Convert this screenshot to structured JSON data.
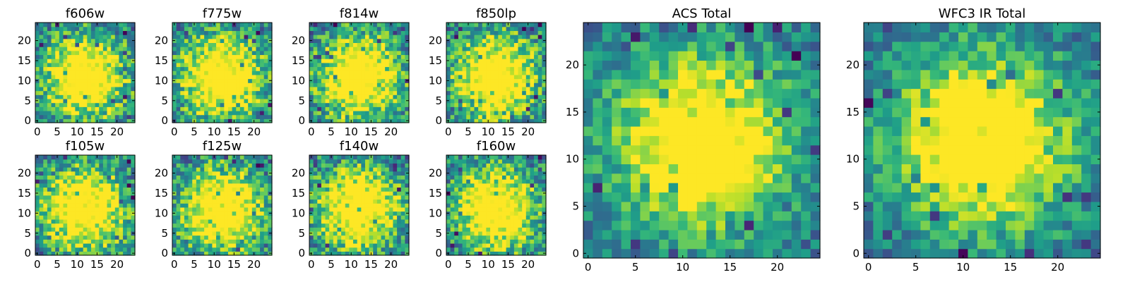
{
  "figure_title": "",
  "chart_data": [
    {
      "type": "heatmap",
      "title": "f606w",
      "xlabel": "",
      "ylabel": "",
      "nx": 25,
      "ny": 25,
      "xlim": [
        0,
        25
      ],
      "ylim": [
        0,
        25
      ],
      "xticks": [
        0,
        5,
        10,
        15,
        20
      ],
      "yticks": [
        0,
        5,
        10,
        15,
        20
      ],
      "colormap": "viridis",
      "peak": [
        12,
        11
      ],
      "grid": false
    },
    {
      "type": "heatmap",
      "title": "f775w",
      "xlabel": "",
      "ylabel": "",
      "nx": 25,
      "ny": 25,
      "xlim": [
        0,
        25
      ],
      "ylim": [
        0,
        25
      ],
      "xticks": [
        0,
        5,
        10,
        15,
        20
      ],
      "yticks": [
        0,
        5,
        10,
        15,
        20
      ],
      "colormap": "viridis",
      "peak": [
        12,
        11
      ],
      "grid": false
    },
    {
      "type": "heatmap",
      "title": "f814w",
      "xlabel": "",
      "ylabel": "",
      "nx": 25,
      "ny": 25,
      "xlim": [
        0,
        25
      ],
      "ylim": [
        0,
        25
      ],
      "xticks": [
        0,
        5,
        10,
        15,
        20
      ],
      "yticks": [
        0,
        5,
        10,
        15,
        20
      ],
      "colormap": "viridis",
      "peak": [
        12,
        11
      ],
      "grid": false
    },
    {
      "type": "heatmap",
      "title": "f850lp",
      "xlabel": "",
      "ylabel": "",
      "nx": 25,
      "ny": 25,
      "xlim": [
        0,
        25
      ],
      "ylim": [
        0,
        25
      ],
      "xticks": [
        0,
        5,
        10,
        15,
        20
      ],
      "yticks": [
        0,
        5,
        10,
        15,
        20
      ],
      "colormap": "viridis",
      "peak": [
        12,
        11
      ],
      "grid": false
    },
    {
      "type": "heatmap",
      "title": "f105w",
      "xlabel": "",
      "ylabel": "",
      "nx": 25,
      "ny": 25,
      "xlim": [
        0,
        25
      ],
      "ylim": [
        0,
        25
      ],
      "xticks": [
        0,
        5,
        10,
        15,
        20
      ],
      "yticks": [
        0,
        5,
        10,
        15,
        20
      ],
      "colormap": "viridis",
      "peak": [
        12,
        11
      ],
      "grid": false
    },
    {
      "type": "heatmap",
      "title": "f125w",
      "xlabel": "",
      "ylabel": "",
      "nx": 25,
      "ny": 25,
      "xlim": [
        0,
        25
      ],
      "ylim": [
        0,
        25
      ],
      "xticks": [
        0,
        5,
        10,
        15,
        20
      ],
      "yticks": [
        0,
        5,
        10,
        15,
        20
      ],
      "colormap": "viridis",
      "peak": [
        12,
        11
      ],
      "grid": false
    },
    {
      "type": "heatmap",
      "title": "f140w",
      "xlabel": "",
      "ylabel": "",
      "nx": 25,
      "ny": 25,
      "xlim": [
        0,
        25
      ],
      "ylim": [
        0,
        25
      ],
      "xticks": [
        0,
        5,
        10,
        15,
        20
      ],
      "yticks": [
        0,
        5,
        10,
        15,
        20
      ],
      "colormap": "viridis",
      "peak": [
        12,
        11
      ],
      "grid": false
    },
    {
      "type": "heatmap",
      "title": "f160w",
      "xlabel": "",
      "ylabel": "",
      "nx": 25,
      "ny": 25,
      "xlim": [
        0,
        25
      ],
      "ylim": [
        0,
        25
      ],
      "xticks": [
        0,
        5,
        10,
        15,
        20
      ],
      "yticks": [
        0,
        5,
        10,
        15,
        20
      ],
      "colormap": "viridis",
      "peak": [
        12,
        11
      ],
      "grid": false
    },
    {
      "type": "heatmap",
      "title": "ACS Total",
      "xlabel": "",
      "ylabel": "",
      "nx": 25,
      "ny": 25,
      "xlim": [
        0,
        25
      ],
      "ylim": [
        0,
        25
      ],
      "xticks": [
        0,
        5,
        10,
        15,
        20
      ],
      "yticks": [
        0,
        5,
        10,
        15,
        20
      ],
      "colormap": "viridis",
      "peak": [
        12,
        12
      ],
      "grid": false
    },
    {
      "type": "heatmap",
      "title": "WFC3 IR Total",
      "xlabel": "",
      "ylabel": "",
      "nx": 25,
      "ny": 25,
      "xlim": [
        0,
        25
      ],
      "ylim": [
        0,
        25
      ],
      "xticks": [
        0,
        5,
        10,
        15,
        20
      ],
      "yticks": [
        0,
        5,
        10,
        15,
        20
      ],
      "colormap": "viridis",
      "peak": [
        12,
        12
      ],
      "grid": false
    }
  ],
  "colors": {
    "background": "#ffffff",
    "axis": "#000000",
    "text": "#000000"
  }
}
